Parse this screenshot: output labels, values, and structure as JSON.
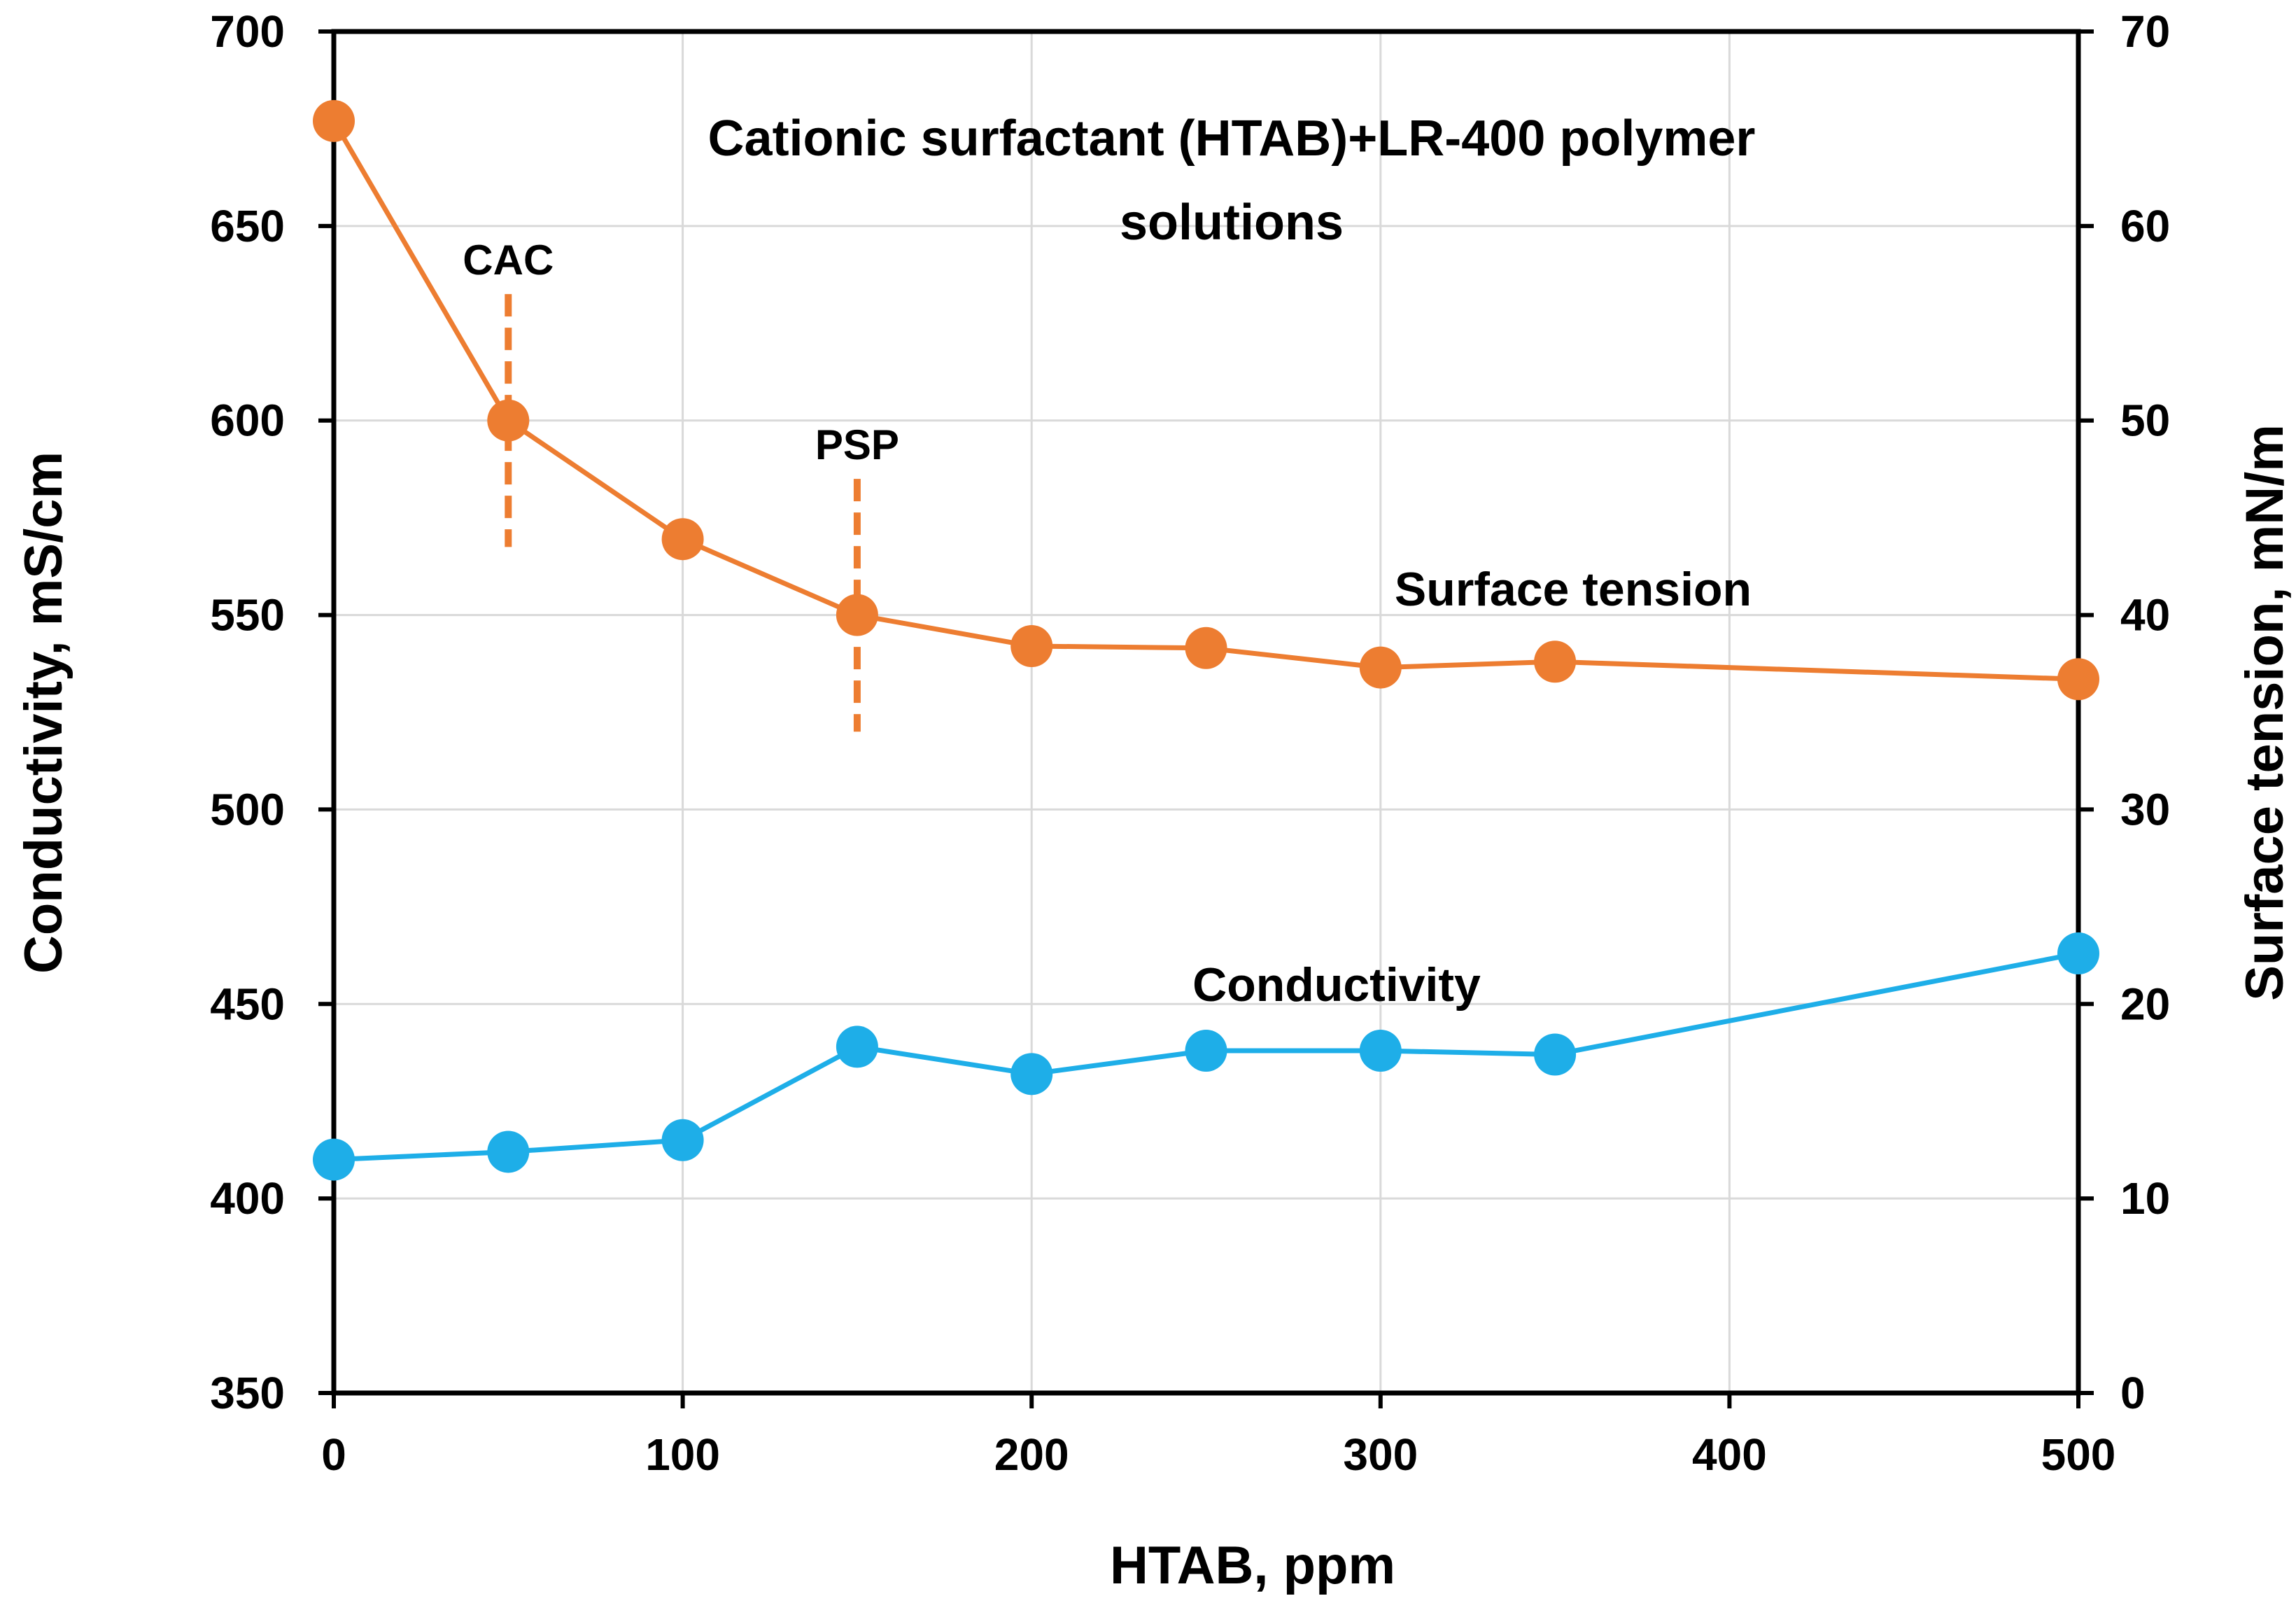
{
  "chart_data": {
    "type": "line",
    "title": "Cationic surfactant (HTAB)+LR-400 polymer solutions",
    "title_lines": [
      "Cationic surfactant (HTAB)+LR-400 polymer",
      "solutions"
    ],
    "xlabel": "HTAB, ppm",
    "ylabel_left": "Conductivity, mS/cm",
    "ylabel_right": "Surface tension, mN/m",
    "xlim": [
      0,
      500
    ],
    "ylim_left": [
      350,
      700
    ],
    "ylim_right": [
      0,
      70
    ],
    "x_ticks": [
      0,
      100,
      200,
      300,
      400,
      500
    ],
    "x_tick_labels": [
      "0",
      "100",
      "200",
      "300",
      "400",
      "500"
    ],
    "y_left_ticks": [
      350,
      400,
      450,
      500,
      550,
      600,
      650,
      700
    ],
    "y_left_tick_labels": [
      "350",
      "400",
      "450",
      "500",
      "550",
      "600",
      "650",
      "700"
    ],
    "y_right_ticks": [
      0,
      10,
      20,
      30,
      40,
      50,
      60,
      70
    ],
    "y_right_tick_labels": [
      "0",
      "10",
      "20",
      "30",
      "40",
      "50",
      "60",
      "70"
    ],
    "grid": true,
    "series": [
      {
        "name": "Surface tension",
        "axis": "right",
        "color": "#ED7D31",
        "x": [
          0,
          50,
          100,
          150,
          200,
          250,
          300,
          350,
          500
        ],
        "values": [
          65.4,
          50.0,
          43.9,
          40.0,
          38.4,
          38.3,
          37.3,
          37.6,
          36.7
        ]
      },
      {
        "name": "Conductivity",
        "axis": "left",
        "color": "#1EAEE8",
        "x": [
          0,
          50,
          100,
          150,
          200,
          250,
          300,
          350,
          500
        ],
        "values": [
          410,
          412,
          415,
          439,
          432,
          438,
          438,
          437,
          463
        ]
      }
    ],
    "annotations": [
      {
        "text": "CAC",
        "x": 50,
        "y_from": 43.5,
        "y_to": 56.5,
        "axis": "right",
        "color": "#ED7D31"
      },
      {
        "text": "PSP",
        "x": 150,
        "y_from": 34.0,
        "y_to": 47.0,
        "axis": "right",
        "color": "#ED7D31"
      }
    ]
  }
}
